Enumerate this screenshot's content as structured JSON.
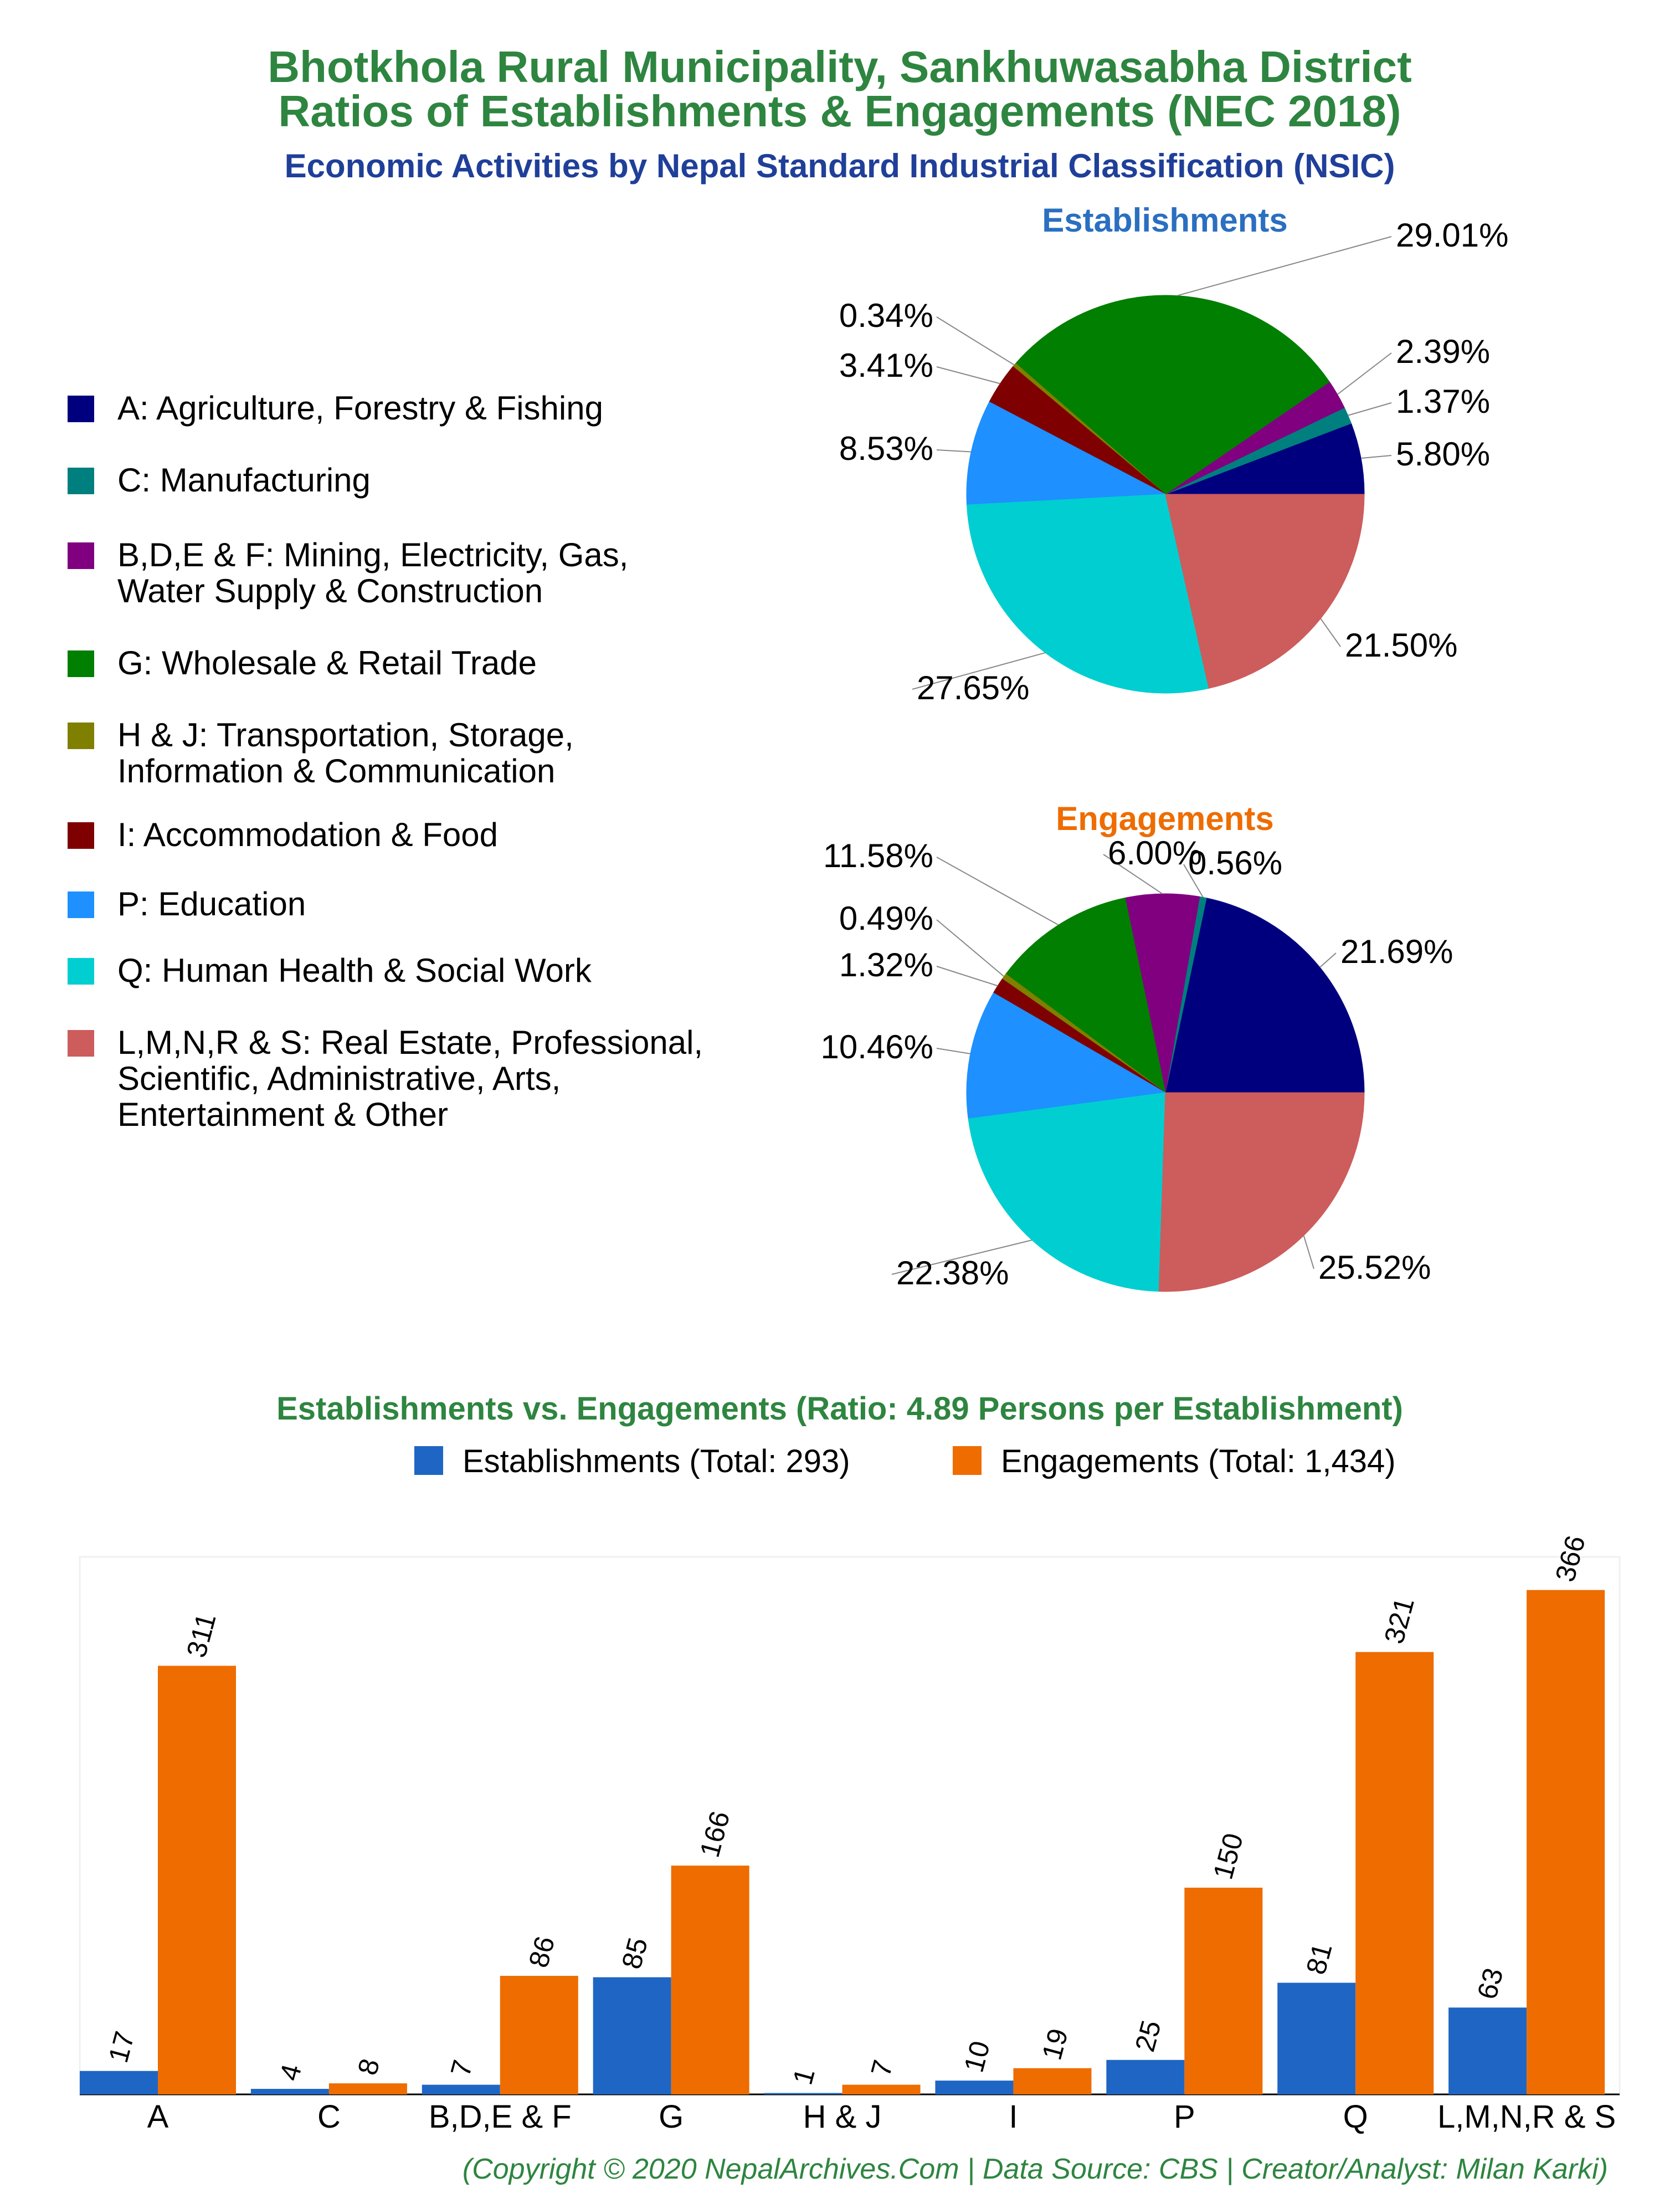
{
  "header": {
    "title_line1": "Bhotkhola Rural Municipality, Sankhuwasabha District",
    "title_line2": "Ratios of Establishments & Engagements (NEC 2018)",
    "subtitle": "Economic Activities by Nepal Standard Industrial Classification (NSIC)"
  },
  "colors": {
    "title": "#2e8540",
    "subtitle": "#1f3f99",
    "establishments_title": "#2a6fc0",
    "engagements_title": "#ee6c00",
    "bar_establishments": "#1f66c4",
    "bar_engagements": "#ee6c00",
    "footer": "#2e8540",
    "categories": [
      "#00007f",
      "#007f7f",
      "#800080",
      "#007f00",
      "#7f7f00",
      "#7f0000",
      "#1e90ff",
      "#00ced1",
      "#cd5c5c"
    ]
  },
  "legend": {
    "items": [
      {
        "lines": [
          "A: Agriculture, Forestry & Fishing"
        ]
      },
      {
        "lines": [
          "C: Manufacturing"
        ]
      },
      {
        "lines": [
          "B,D,E & F: Mining, Electricity, Gas,",
          "Water Supply & Construction"
        ]
      },
      {
        "lines": [
          "G: Wholesale & Retail Trade"
        ]
      },
      {
        "lines": [
          "H & J: Transportation, Storage,",
          "Information & Communication"
        ]
      },
      {
        "lines": [
          "I: Accommodation & Food"
        ]
      },
      {
        "lines": [
          "P: Education"
        ]
      },
      {
        "lines": [
          "Q: Human Health & Social Work"
        ]
      },
      {
        "lines": [
          "L,M,N,R & S: Real Estate, Professional,",
          "Scientific, Administrative, Arts,",
          "Entertainment & Other"
        ]
      }
    ]
  },
  "chart_data": [
    {
      "type": "pie",
      "title": "Establishments",
      "categories": [
        "A",
        "C",
        "B,D,E & F",
        "G",
        "H & J",
        "I",
        "P",
        "Q",
        "L,M,N,R & S"
      ],
      "values": [
        5.8,
        1.37,
        2.39,
        29.01,
        0.34,
        3.41,
        8.53,
        27.65,
        21.5
      ],
      "labels": [
        "5.80%",
        "1.37%",
        "2.39%",
        "29.01%",
        "0.34%",
        "3.41%",
        "8.53%",
        "27.65%",
        "21.50%"
      ]
    },
    {
      "type": "pie",
      "title": "Engagements",
      "categories": [
        "A",
        "C",
        "B,D,E & F",
        "G",
        "H & J",
        "I",
        "P",
        "Q",
        "L,M,N,R & S"
      ],
      "values": [
        21.69,
        0.56,
        6.0,
        11.58,
        0.49,
        1.32,
        10.46,
        22.38,
        25.52
      ],
      "labels": [
        "21.69%",
        "0.56%",
        "6.00%",
        "11.58%",
        "0.49%",
        "1.32%",
        "10.46%",
        "22.38%",
        "25.52%"
      ]
    },
    {
      "type": "bar",
      "title": "Establishments vs. Engagements (Ratio: 4.89 Persons per Establishment)",
      "categories": [
        "A",
        "C",
        "B,D,E & F",
        "G",
        "H & J",
        "I",
        "P",
        "Q",
        "L,M,N,R & S"
      ],
      "series": [
        {
          "name": "Establishments (Total: 293)",
          "values": [
            17,
            4,
            7,
            85,
            1,
            10,
            25,
            81,
            63
          ]
        },
        {
          "name": "Engagements (Total: 1,434)",
          "values": [
            311,
            8,
            86,
            166,
            7,
            19,
            150,
            321,
            366
          ]
        }
      ],
      "ylim": [
        0,
        390
      ],
      "grid": false,
      "legend_position": "top"
    }
  ],
  "footer": {
    "text": "(Copyright © 2020 NepalArchives.Com | Data Source: CBS | Creator/Analyst: Milan Karki)"
  }
}
